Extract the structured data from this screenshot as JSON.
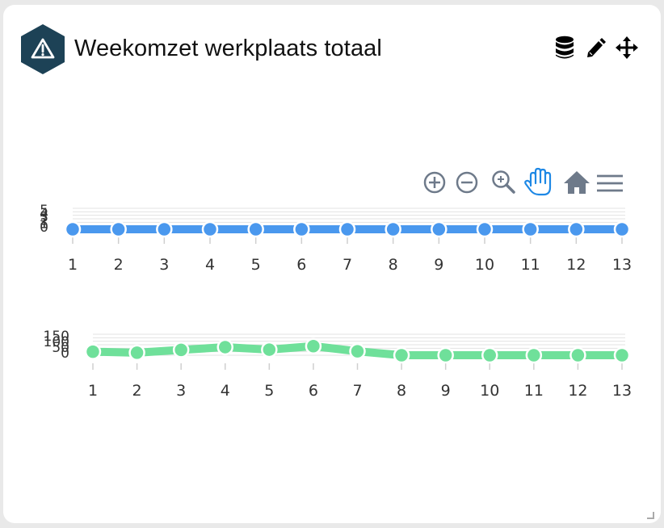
{
  "widget": {
    "title": "Weekomzet werkplaats totaal",
    "badge_icon": "warning-triangle-icon",
    "actions": [
      "database-icon",
      "pencil-icon",
      "move-icon"
    ]
  },
  "toolbar": {
    "icons": [
      "zoom-in-icon",
      "zoom-out-icon",
      "zoom-select-icon",
      "pan-hand-icon",
      "home-reset-icon",
      "menu-icon"
    ],
    "active": "pan-hand-icon",
    "color": "#6e7a8a",
    "active_color": "#1e88e5"
  },
  "chart_data": [
    {
      "type": "line",
      "x": [
        1,
        2,
        3,
        4,
        5,
        6,
        7,
        8,
        9,
        10,
        11,
        12,
        13
      ],
      "series": [
        {
          "color": "#4a98ee",
          "values": [
            0,
            0,
            0,
            0,
            0,
            0,
            0,
            0,
            0,
            0,
            0,
            0,
            0
          ]
        }
      ],
      "ytick_labels": [
        "5",
        "4",
        "3",
        "2",
        "1",
        "0"
      ],
      "ylim": [
        0,
        5
      ],
      "grid": true
    },
    {
      "type": "line",
      "x": [
        1,
        2,
        3,
        4,
        5,
        6,
        7,
        8,
        9,
        10,
        11,
        12,
        13
      ],
      "series": [
        {
          "color": "#6fe09a",
          "values": [
            25,
            18,
            38,
            58,
            40,
            65,
            28,
            0,
            0,
            0,
            0,
            0,
            0
          ]
        }
      ],
      "ytick_labels": [
        "150",
        "100",
        "50",
        "0"
      ],
      "ylim": [
        0,
        150
      ],
      "grid": true
    }
  ]
}
